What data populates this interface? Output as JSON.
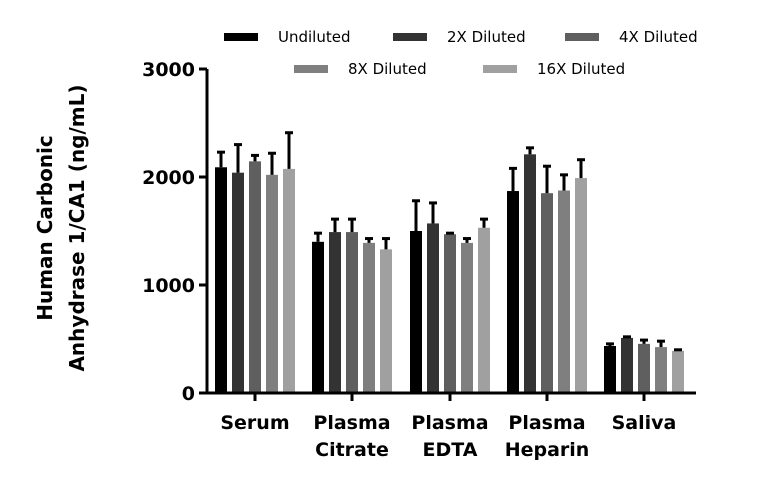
{
  "chart_data": {
    "type": "bar",
    "title": "",
    "xlabel": "",
    "ylabel": "Human Carbonic Anhydrase 1/CA1 (ng/mL)",
    "ylabel_lines": [
      "Human Carbonic",
      "Anhydrase 1/CA1 (ng/mL)"
    ],
    "ylim": [
      0,
      3000
    ],
    "yticks": [
      0,
      1000,
      2000,
      3000
    ],
    "grid": false,
    "legend_position": "top",
    "categories": [
      "Serum",
      "Plasma Citrate",
      "Plasma EDTA",
      "Plasma Heparin",
      "Saliva"
    ],
    "category_lines": [
      [
        "Serum"
      ],
      [
        "Plasma",
        "Citrate"
      ],
      [
        "Plasma",
        "EDTA"
      ],
      [
        "Plasma",
        "Heparin"
      ],
      [
        "Saliva"
      ]
    ],
    "series": [
      {
        "name": "Undiluted",
        "color": "#000000",
        "values": [
          2090,
          1400,
          1500,
          1870,
          435
        ],
        "error_upper": [
          2230,
          1480,
          1780,
          2080,
          455
        ]
      },
      {
        "name": "2X Diluted",
        "color": "#333333",
        "values": [
          2040,
          1490,
          1570,
          2210,
          510
        ],
        "error_upper": [
          2300,
          1610,
          1760,
          2270,
          520
        ]
      },
      {
        "name": "4X Diluted",
        "color": "#5f5f5f",
        "values": [
          2145,
          1490,
          1470,
          1850,
          455
        ],
        "error_upper": [
          2200,
          1610,
          1480,
          2100,
          490
        ]
      },
      {
        "name": "8X Diluted",
        "color": "#7f7f7f",
        "values": [
          2020,
          1390,
          1390,
          1875,
          425
        ],
        "error_upper": [
          2220,
          1430,
          1430,
          2020,
          480
        ]
      },
      {
        "name": "16X Diluted",
        "color": "#a0a0a0",
        "values": [
          2075,
          1330,
          1530,
          1990,
          390
        ],
        "error_upper": [
          2410,
          1430,
          1610,
          2160,
          400
        ]
      }
    ]
  }
}
